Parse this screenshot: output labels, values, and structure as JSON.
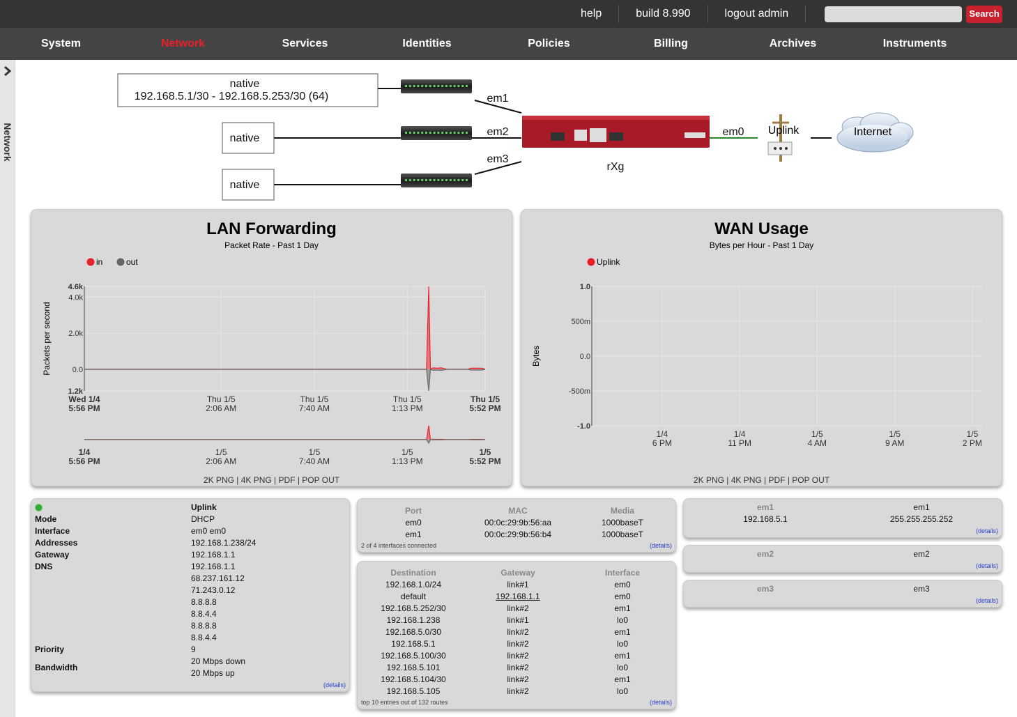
{
  "topbar": {
    "links": [
      "help",
      "build 8.990",
      "logout admin"
    ],
    "search_button": "Search"
  },
  "nav": {
    "items": [
      "System",
      "Network",
      "Services",
      "Identities",
      "Policies",
      "Billing",
      "Archives",
      "Instruments"
    ],
    "active": 1
  },
  "sidebar": {
    "label": "Network"
  },
  "diagram": {
    "lans": [
      {
        "name": "native",
        "range": "192.168.5.1/30 - 192.168.5.253/30 (64)"
      },
      {
        "name": "native"
      },
      {
        "name": "native"
      }
    ],
    "ports": [
      "em1",
      "em2",
      "em3"
    ],
    "device": "rXg",
    "wan_port": "em0",
    "uplink": "Uplink",
    "internet": "Internet"
  },
  "lan_chart": {
    "type": "area",
    "title": "LAN Forwarding",
    "subtitle": "Packet Rate - Past 1 Day",
    "y_label": "Packets per second",
    "series": [
      {
        "name": "in",
        "color": "#e8202a",
        "x": [
          "1/4 17:56",
          "1/5 14:22",
          "1/5 14:30",
          "1/5 14:36",
          "1/5 14:45",
          "1/5 15:00",
          "1/5 15:15",
          "1/5 15:35",
          "1/5 16:50",
          "1/5 17:00",
          "1/5 17:40",
          "1/5 17:52"
        ],
        "values": [
          0,
          0,
          4600,
          0,
          80,
          60,
          80,
          0,
          0,
          60,
          60,
          0
        ]
      },
      {
        "name": "out",
        "color": "#666666",
        "x": [
          "1/4 17:56",
          "1/5 14:22",
          "1/5 14:30",
          "1/5 14:36",
          "1/5 14:45",
          "1/5 15:00",
          "1/5 15:15",
          "1/5 15:35",
          "1/5 16:50",
          "1/5 17:00",
          "1/5 17:40",
          "1/5 17:52"
        ],
        "values": [
          0,
          0,
          -1200,
          0,
          -60,
          -40,
          -60,
          0,
          0,
          -40,
          -40,
          0
        ]
      }
    ],
    "xlim": [
      "1/4 17:56",
      "1/5 17:52"
    ],
    "xticks": [
      {
        "value": "1/4 17:56",
        "label": [
          "Wed 1/4",
          "5:56 PM"
        ]
      },
      {
        "value": "1/5 02:06",
        "label": [
          "Thu 1/5",
          "2:06 AM"
        ]
      },
      {
        "value": "1/5 07:40",
        "label": [
          "Thu 1/5",
          "7:40 AM"
        ]
      },
      {
        "value": "1/5 13:13",
        "label": [
          "Thu 1/5",
          "1:13 PM"
        ]
      },
      {
        "value": "1/5 17:52",
        "label": [
          "Thu 1/5",
          "5:52 PM"
        ]
      }
    ],
    "overview_xticks": [
      {
        "value": "1/4 17:56",
        "label": [
          "1/4",
          "5:56 PM"
        ]
      },
      {
        "value": "1/5 02:06",
        "label": [
          "1/5",
          "2:06 AM"
        ]
      },
      {
        "value": "1/5 07:40",
        "label": [
          "1/5",
          "7:40 AM"
        ]
      },
      {
        "value": "1/5 13:13",
        "label": [
          "1/5",
          "1:13 PM"
        ]
      },
      {
        "value": "1/5 17:52",
        "label": [
          "1/5",
          "5:52 PM"
        ]
      }
    ],
    "ylim": [
      -1200,
      4600
    ],
    "yticks": [
      {
        "value": 4600,
        "label": "4.6k"
      },
      {
        "value": 4000,
        "label": "4.0k"
      },
      {
        "value": 2000,
        "label": "2.0k"
      },
      {
        "value": 0,
        "label": "0.0"
      },
      {
        "value": -1200,
        "label": "1.2k"
      }
    ],
    "grid": true,
    "footer": "2K PNG | 4K PNG | PDF | POP OUT"
  },
  "wan_chart": {
    "type": "area",
    "title": "WAN Usage",
    "subtitle": "Bytes per Hour - Past 1 Day",
    "y_label": "Bytes",
    "series": [
      {
        "name": "Uplink",
        "color": "#e8202a",
        "x": [],
        "values": []
      }
    ],
    "xlim": [
      "1/4 13:28",
      "1/5 14:38"
    ],
    "xticks": [
      {
        "value": "1/4 18:00",
        "label": [
          "1/4",
          "6 PM"
        ]
      },
      {
        "value": "1/4 23:00",
        "label": [
          "1/4",
          "11 PM"
        ]
      },
      {
        "value": "1/5 04:00",
        "label": [
          "1/5",
          "4 AM"
        ]
      },
      {
        "value": "1/5 09:00",
        "label": [
          "1/5",
          "9 AM"
        ]
      },
      {
        "value": "1/5 14:00",
        "label": [
          "1/5",
          "2 PM"
        ]
      }
    ],
    "ylim": [
      -1,
      1
    ],
    "yticks": [
      {
        "value": 1,
        "label": "1.0"
      },
      {
        "value": 0.5,
        "label": "500m"
      },
      {
        "value": 0,
        "label": "0.0"
      },
      {
        "value": -0.5,
        "label": "-500m"
      },
      {
        "value": -1,
        "label": "-1.0"
      }
    ],
    "grid": true,
    "footer": "2K PNG | 4K PNG | PDF | POP OUT"
  },
  "uplink_panel": {
    "header": "Uplink",
    "rows": [
      {
        "label": "Mode",
        "values": [
          "DHCP"
        ]
      },
      {
        "label": "Interface",
        "values": [
          "em0 em0"
        ]
      },
      {
        "label": "Addresses",
        "values": [
          "192.168.1.238/24"
        ]
      },
      {
        "label": "Gateway",
        "values": [
          "192.168.1.1"
        ]
      },
      {
        "label": "DNS",
        "values": [
          "192.168.1.1",
          "68.237.161.12",
          "71.243.0.12",
          "8.8.8.8",
          "8.8.4.4",
          "8.8.8.8",
          "8.8.4.4"
        ]
      },
      {
        "label": "Priority",
        "values": [
          "9"
        ]
      },
      {
        "label": "Bandwidth",
        "values": [
          "20 Mbps down",
          "20 Mbps up"
        ]
      }
    ],
    "details": "(details)"
  },
  "interfaces_table": {
    "headers": [
      "Port",
      "MAC",
      "Media"
    ],
    "rows": [
      [
        "em0",
        "00:0c:29:9b:56:aa",
        "1000baseT"
      ],
      [
        "em1",
        "00:0c:29:9b:56:b4",
        "1000baseT"
      ]
    ],
    "footer": "2 of 4 interfaces connected",
    "details": "(details)"
  },
  "routes_table": {
    "headers": [
      "Destination",
      "Gateway",
      "Interface"
    ],
    "rows": [
      [
        "192.168.1.0/24",
        "link#1",
        "em0"
      ],
      [
        "default",
        {
          "text": "192.168.1.1",
          "link": true
        },
        "em0"
      ],
      [
        "192.168.5.252/30",
        "link#2",
        "em1"
      ],
      [
        "192.168.1.238",
        "link#1",
        "lo0"
      ],
      [
        "192.168.5.0/30",
        "link#2",
        "em1"
      ],
      [
        "192.168.5.1",
        "link#2",
        "lo0"
      ],
      [
        "192.168.5.100/30",
        "link#2",
        "em1"
      ],
      [
        "192.168.5.101",
        "link#2",
        "lo0"
      ],
      [
        "192.168.5.104/30",
        "link#2",
        "em1"
      ],
      [
        "192.168.5.105",
        "link#2",
        "lo0"
      ]
    ],
    "footer": "top 10 entries out of 132 routes",
    "details": "(details)"
  },
  "em_panels": [
    {
      "headers": [
        "em1",
        "em1"
      ],
      "rows": [
        [
          "192.168.5.1",
          "255.255.255.252"
        ]
      ],
      "details": "(details)"
    },
    {
      "headers": [
        "em2",
        "em2"
      ],
      "rows": [],
      "details": "(details)"
    },
    {
      "headers": [
        "em3",
        "em3"
      ],
      "rows": [],
      "details": "(details)"
    }
  ]
}
